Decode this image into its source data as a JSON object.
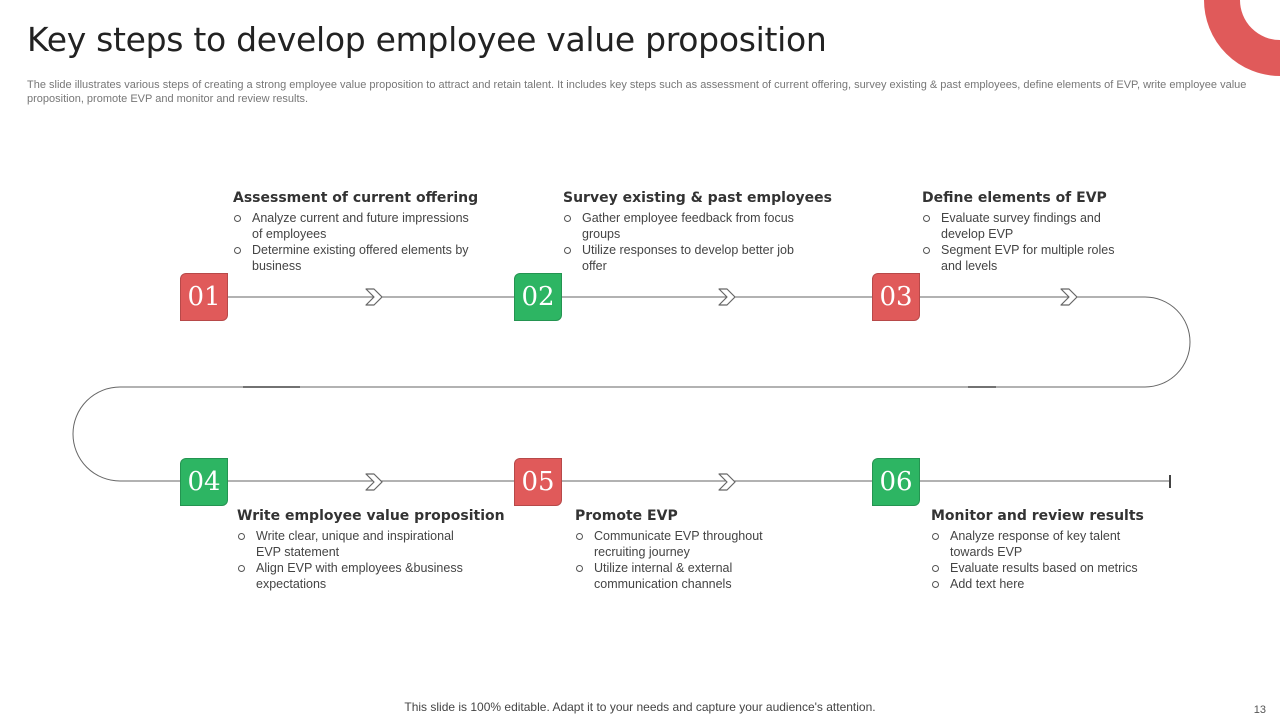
{
  "title": "Key steps to develop employee value proposition",
  "subtitle": "The slide illustrates various steps of creating a strong employee value proposition to attract and retain talent. It includes key steps such as assessment of current offering, survey existing & past employees, define elements of EVP, write employee value proposition, promote EVP  and monitor and review results.",
  "colors": {
    "red": "#E05A5A",
    "green": "#2DB563",
    "line": "#666666"
  },
  "steps": [
    {
      "number": "01",
      "color": "red",
      "title": "Assessment of current offering",
      "bullets": [
        "Analyze current and future impressions of employees",
        "Determine existing offered elements by business"
      ]
    },
    {
      "number": "02",
      "color": "green",
      "title": "Survey existing & past employees",
      "bullets": [
        "Gather employee feedback from focus groups",
        "Utilize responses to develop  better job offer"
      ]
    },
    {
      "number": "03",
      "color": "red",
      "title": "Define elements of EVP",
      "bullets": [
        "Evaluate survey findings and develop  EVP",
        "Segment EVP for multiple roles and levels"
      ]
    },
    {
      "number": "04",
      "color": "green",
      "title": "Write employee value proposition",
      "bullets": [
        "Write clear, unique and inspirational EVP statement",
        "Align EVP with employees &business expectations"
      ]
    },
    {
      "number": "05",
      "color": "red",
      "title": "Promote EVP",
      "bullets": [
        "Communicate EVP throughout recruiting journey",
        "Utilize internal & external communication channels"
      ]
    },
    {
      "number": "06",
      "color": "green",
      "title": "Monitor and review results",
      "bullets": [
        "Analyze response of key talent towards EVP",
        "Evaluate results based on metrics",
        "Add text here"
      ]
    }
  ],
  "footer": "This slide is 100% editable. Adapt it to your needs and capture your audience's attention.",
  "page_number": "13"
}
